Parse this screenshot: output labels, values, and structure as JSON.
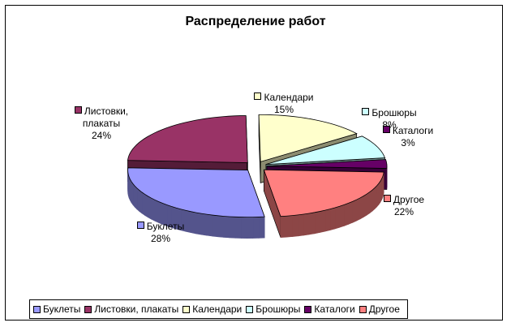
{
  "chart_data": {
    "type": "pie",
    "title": "Распределение работ",
    "categories": [
      "Буклеты",
      "Листовки, плакаты",
      "Календари",
      "Брошюры",
      "Каталоги",
      "Другое"
    ],
    "values": [
      28,
      24,
      15,
      8,
      3,
      22
    ],
    "value_labels": [
      "28%",
      "24%",
      "15%",
      "8%",
      "3%",
      "22%"
    ],
    "colors": [
      "#9999ff",
      "#993366",
      "#ffffcc",
      "#ccffff",
      "#660066",
      "#ff8080"
    ],
    "legend": "bottom"
  }
}
